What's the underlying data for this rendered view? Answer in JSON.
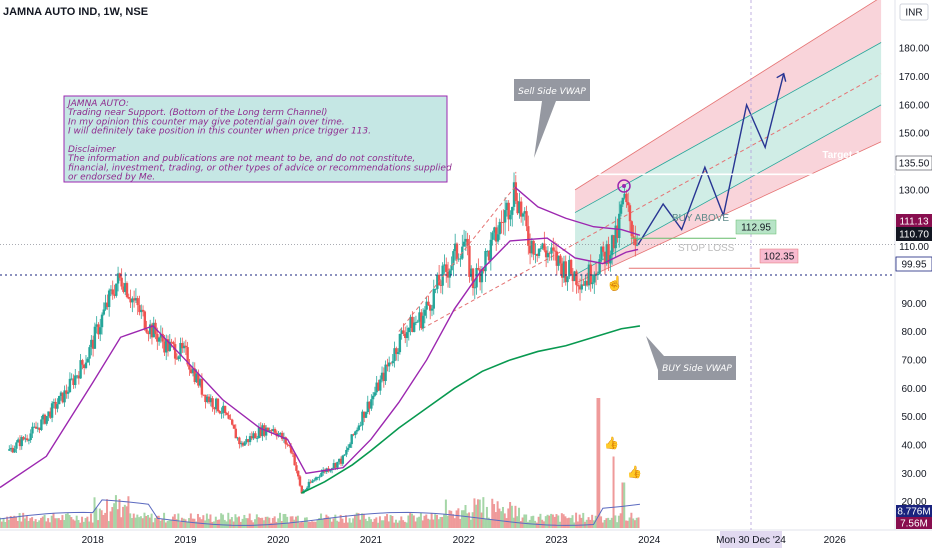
{
  "header": {
    "symbol": "JAMNA AUTO IND, 1W, NSE",
    "currency": "INR"
  },
  "note": {
    "lines": [
      "JAMNA AUTO:",
      "Trading near Support. (Bottom of the Long term Channel)",
      "In my opinion this counter may give potential gain over time.",
      "I will definitely take position in this counter when price trigger 113.",
      "",
      "Disclaimer",
      "The information and publications are not meant to be, and do not constitute,",
      "financial, investment, trading, or other types of advice or recommendations supplied",
      "or endorsed by Me."
    ]
  },
  "callouts": {
    "sell_vwap": "Sell Side VWAP",
    "buy_vwap": "BUY Side VWAP"
  },
  "levels": {
    "target": {
      "label": "Target 1 (20%)",
      "price": 135.5,
      "tag": "135.50"
    },
    "buy_above": {
      "label": "BUY ABOVE",
      "price": 112.95,
      "tag": "112.95"
    },
    "stop_loss": {
      "label": "STOP LOSS",
      "price": 102.35,
      "tag": "102.35"
    },
    "support": {
      "price": 99.95,
      "tag": "99.95"
    },
    "last_close": {
      "price": 110.7,
      "tag": "110.70"
    },
    "last_prev": {
      "price": 111.13,
      "tag": "111.13"
    }
  },
  "volume_tags": {
    "vol1": "8.776M",
    "vol2": "7.56M"
  },
  "date_tag": "Mon 30 Dec '24",
  "colors": {
    "up": "#26a69a",
    "down": "#ef5350",
    "ma": "#9c27b0",
    "buy_vwap": "#089950",
    "channel_outer": "#f7c5cd",
    "channel_inner": "#c4e8e0",
    "note_bg": "#b2dfdb",
    "note_border": "#9c27b0"
  },
  "chart_data": {
    "type": "candlestick",
    "title": "JAMNA AUTO IND, 1W, NSE",
    "y_axis": {
      "range": [
        10,
        197
      ],
      "ticks": [
        20,
        30,
        40,
        50,
        60,
        70,
        80,
        90,
        110,
        120,
        130,
        140,
        150,
        160,
        170,
        180
      ]
    },
    "x_axis": {
      "ticks": [
        "2018",
        "2019",
        "2020",
        "2021",
        "2022",
        "2023",
        "2024",
        "2026"
      ],
      "tick_x": [
        2018.0,
        2019.0,
        2020.0,
        2021.0,
        2022.0,
        2023.0,
        2024.0,
        2026.0
      ]
    },
    "price_path": [
      {
        "x": 2017.1,
        "y": 38
      },
      {
        "x": 2017.4,
        "y": 46
      },
      {
        "x": 2017.7,
        "y": 58
      },
      {
        "x": 2017.95,
        "y": 72
      },
      {
        "x": 2018.1,
        "y": 85
      },
      {
        "x": 2018.25,
        "y": 97
      },
      {
        "x": 2018.32,
        "y": 99
      },
      {
        "x": 2018.45,
        "y": 90
      },
      {
        "x": 2018.6,
        "y": 82
      },
      {
        "x": 2018.8,
        "y": 75
      },
      {
        "x": 2019.0,
        "y": 72
      },
      {
        "x": 2019.2,
        "y": 58
      },
      {
        "x": 2019.4,
        "y": 52
      },
      {
        "x": 2019.6,
        "y": 40
      },
      {
        "x": 2019.8,
        "y": 45
      },
      {
        "x": 2019.95,
        "y": 46
      },
      {
        "x": 2020.15,
        "y": 38
      },
      {
        "x": 2020.25,
        "y": 23
      },
      {
        "x": 2020.45,
        "y": 30
      },
      {
        "x": 2020.7,
        "y": 35
      },
      {
        "x": 2020.9,
        "y": 50
      },
      {
        "x": 2021.1,
        "y": 62
      },
      {
        "x": 2021.35,
        "y": 80
      },
      {
        "x": 2021.55,
        "y": 85
      },
      {
        "x": 2021.75,
        "y": 98
      },
      {
        "x": 2022.0,
        "y": 112
      },
      {
        "x": 2022.1,
        "y": 97
      },
      {
        "x": 2022.3,
        "y": 110
      },
      {
        "x": 2022.5,
        "y": 126
      },
      {
        "x": 2022.55,
        "y": 131
      },
      {
        "x": 2022.7,
        "y": 112
      },
      {
        "x": 2022.9,
        "y": 108
      },
      {
        "x": 2023.1,
        "y": 102
      },
      {
        "x": 2023.3,
        "y": 98
      },
      {
        "x": 2023.5,
        "y": 106
      },
      {
        "x": 2023.65,
        "y": 113
      },
      {
        "x": 2023.72,
        "y": 127
      },
      {
        "x": 2023.8,
        "y": 118
      },
      {
        "x": 2023.88,
        "y": 110.7
      }
    ],
    "moving_average": [
      {
        "x": 2017.0,
        "y": 25
      },
      {
        "x": 2017.5,
        "y": 36
      },
      {
        "x": 2018.0,
        "y": 62
      },
      {
        "x": 2018.3,
        "y": 78
      },
      {
        "x": 2018.65,
        "y": 82
      },
      {
        "x": 2019.0,
        "y": 70
      },
      {
        "x": 2019.4,
        "y": 56
      },
      {
        "x": 2019.8,
        "y": 46
      },
      {
        "x": 2020.1,
        "y": 42
      },
      {
        "x": 2020.3,
        "y": 30
      },
      {
        "x": 2020.7,
        "y": 32
      },
      {
        "x": 2021.0,
        "y": 42
      },
      {
        "x": 2021.3,
        "y": 55
      },
      {
        "x": 2021.6,
        "y": 70
      },
      {
        "x": 2021.9,
        "y": 88
      },
      {
        "x": 2022.2,
        "y": 102
      },
      {
        "x": 2022.5,
        "y": 112
      },
      {
        "x": 2022.9,
        "y": 113
      },
      {
        "x": 2023.2,
        "y": 106
      },
      {
        "x": 2023.5,
        "y": 104
      },
      {
        "x": 2023.75,
        "y": 108
      },
      {
        "x": 2023.88,
        "y": 109
      }
    ],
    "buy_side_vwap": [
      {
        "x": 2020.25,
        "y": 23
      },
      {
        "x": 2020.5,
        "y": 27
      },
      {
        "x": 2020.8,
        "y": 33
      },
      {
        "x": 2021.0,
        "y": 38
      },
      {
        "x": 2021.3,
        "y": 46
      },
      {
        "x": 2021.6,
        "y": 53
      },
      {
        "x": 2021.9,
        "y": 60
      },
      {
        "x": 2022.2,
        "y": 66
      },
      {
        "x": 2022.5,
        "y": 70
      },
      {
        "x": 2022.8,
        "y": 73
      },
      {
        "x": 2023.1,
        "y": 75
      },
      {
        "x": 2023.4,
        "y": 78
      },
      {
        "x": 2023.7,
        "y": 81
      },
      {
        "x": 2023.9,
        "y": 82
      }
    ],
    "sell_side_vwap": [
      {
        "x": 2022.55,
        "y": 131
      },
      {
        "x": 2022.8,
        "y": 124
      },
      {
        "x": 2023.1,
        "y": 120
      },
      {
        "x": 2023.4,
        "y": 117
      },
      {
        "x": 2023.7,
        "y": 116
      },
      {
        "x": 2023.9,
        "y": 114
      }
    ],
    "projection_path": [
      {
        "x": 2023.88,
        "y": 110.7
      },
      {
        "x": 2024.15,
        "y": 125
      },
      {
        "x": 2024.35,
        "y": 116
      },
      {
        "x": 2024.6,
        "y": 138
      },
      {
        "x": 2024.8,
        "y": 121
      },
      {
        "x": 2025.05,
        "y": 160
      },
      {
        "x": 2025.25,
        "y": 145
      },
      {
        "x": 2025.45,
        "y": 171
      }
    ],
    "channel": {
      "x_start": 2023.2,
      "x_end": 2026.5,
      "outer_top": [
        130,
        198
      ],
      "inner_top": [
        122,
        182
      ],
      "inner_bottom": [
        100,
        160
      ],
      "outer_bottom": [
        97,
        147
      ]
    },
    "volume_peaks": [
      {
        "x": 2023.45,
        "v": 1.0
      },
      {
        "x": 2023.62,
        "v": 0.55
      },
      {
        "x": 2023.72,
        "v": 0.35
      }
    ]
  }
}
